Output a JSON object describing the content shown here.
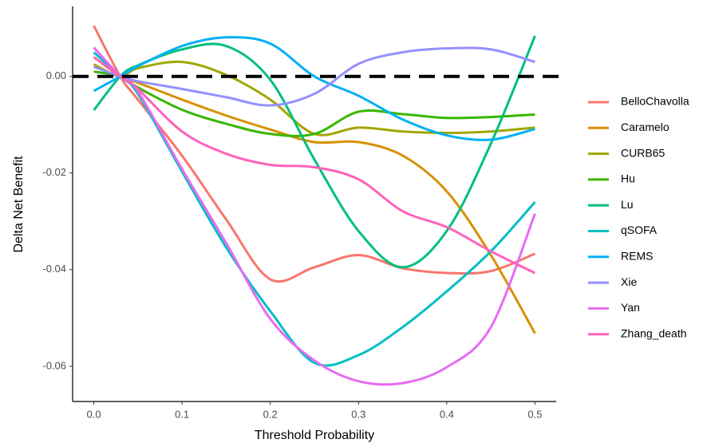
{
  "chart_data": {
    "type": "line",
    "x_label": "Threshold Probability",
    "y_label": "Delta Net Benefit",
    "x": [
      0,
      0.03,
      0.05,
      0.1,
      0.15,
      0.2,
      0.25,
      0.3,
      0.35,
      0.4,
      0.45,
      0.5
    ],
    "series": [
      {
        "name": "BelloChavolla",
        "color": "#F8766D",
        "values": [
          0.0105,
          0,
          -0.0048,
          -0.0164,
          -0.0296,
          -0.042,
          -0.0395,
          -0.037,
          -0.0397,
          -0.0407,
          -0.0403,
          -0.0367
        ]
      },
      {
        "name": "Caramelo",
        "color": "#D89000",
        "values": [
          0.004,
          0,
          -0.0013,
          -0.0048,
          -0.0081,
          -0.011,
          -0.0136,
          -0.0136,
          -0.0164,
          -0.0238,
          -0.037,
          -0.0532
        ]
      },
      {
        "name": "CURB65",
        "color": "#A3A500",
        "values": [
          0.0025,
          0,
          0.0017,
          0.003,
          0.0003,
          -0.0048,
          -0.0119,
          -0.0106,
          -0.0114,
          -0.0117,
          -0.0114,
          -0.0106
        ]
      },
      {
        "name": "Hu",
        "color": "#39B600",
        "values": [
          0.001,
          0,
          -0.0023,
          -0.0069,
          -0.0098,
          -0.0119,
          -0.0119,
          -0.0073,
          -0.0078,
          -0.0086,
          -0.0084,
          -0.0079
        ]
      },
      {
        "name": "Lu",
        "color": "#00BF7D",
        "values": [
          -0.007,
          0,
          0.0023,
          0.0056,
          0.0063,
          -0.0007,
          -0.0172,
          -0.032,
          -0.0395,
          -0.032,
          -0.0139,
          0.0084
        ]
      },
      {
        "name": "qSOFA",
        "color": "#00BFC4",
        "values": [
          0.005,
          0,
          -0.0036,
          -0.0197,
          -0.0354,
          -0.0486,
          -0.0593,
          -0.0577,
          -0.0519,
          -0.0445,
          -0.0362,
          -0.026
        ]
      },
      {
        "name": "REMS",
        "color": "#00B0F6",
        "values": [
          -0.003,
          0,
          0.0021,
          0.0063,
          0.0081,
          0.0068,
          0,
          -0.004,
          -0.0089,
          -0.0122,
          -0.0131,
          -0.0109
        ]
      },
      {
        "name": "Xie",
        "color": "#9590FF",
        "values": [
          0.002,
          0,
          -0.001,
          -0.0026,
          -0.0043,
          -0.006,
          -0.0036,
          0.0026,
          0.005,
          0.0058,
          0.0056,
          0.003
        ]
      },
      {
        "name": "Yan",
        "color": "#E76BF3",
        "values": [
          0.006,
          0,
          -0.0031,
          -0.0192,
          -0.0345,
          -0.0502,
          -0.0588,
          -0.0631,
          -0.0635,
          -0.0602,
          -0.0519,
          -0.0284
        ]
      },
      {
        "name": "Zhang_death",
        "color": "#FF62BC",
        "values": [
          0.004,
          0,
          -0.0026,
          -0.0114,
          -0.016,
          -0.0183,
          -0.0188,
          -0.0213,
          -0.0279,
          -0.0312,
          -0.0362,
          -0.0407
        ]
      }
    ],
    "reference_line": 0,
    "xlim": [
      -0.024,
      0.524
    ],
    "ylim": [
      -0.0673,
      0.0145
    ],
    "xticks": [
      {
        "value": 0,
        "label": "0.0"
      },
      0.1,
      0.2,
      0.3,
      0.4,
      0.5
    ],
    "yticks": [
      {
        "value": 0,
        "label": "0.00"
      },
      -0.02,
      -0.04,
      -0.06
    ],
    "grid": false,
    "legend": "right"
  }
}
